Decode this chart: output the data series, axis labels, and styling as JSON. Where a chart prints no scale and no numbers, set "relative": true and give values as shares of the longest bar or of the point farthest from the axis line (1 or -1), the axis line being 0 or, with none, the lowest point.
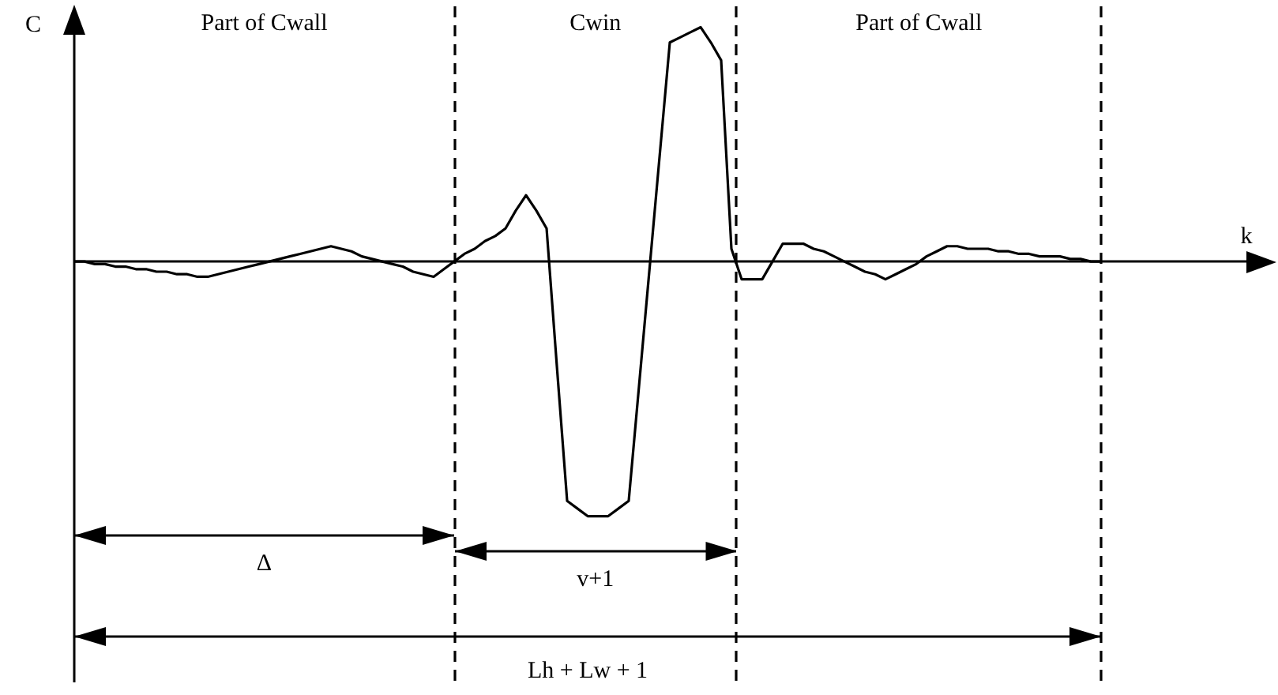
{
  "chart_data": {
    "type": "line",
    "relative": true,
    "ylabel": "C",
    "color": "#000000",
    "tick_labels": false,
    "categories": [
      null,
      null,
      null,
      null,
      null,
      null,
      null,
      null,
      null,
      null,
      null,
      null,
      null,
      null,
      null,
      null,
      null,
      null,
      null,
      null,
      null,
      null,
      null,
      null,
      null,
      null,
      null,
      null,
      null,
      null,
      null,
      null,
      null,
      null,
      null,
      null,
      null,
      null,
      null,
      null,
      null,
      null,
      null,
      null,
      null,
      null,
      null,
      null,
      null,
      null,
      null,
      null,
      null,
      null,
      null,
      null,
      null,
      null,
      null,
      null,
      null,
      null,
      null,
      null,
      null,
      null,
      null,
      null,
      null,
      null,
      null,
      null,
      null,
      null,
      null,
      null,
      null,
      null,
      null,
      null,
      null,
      null,
      null,
      null,
      null,
      null,
      null,
      null,
      null,
      null,
      null,
      null,
      null,
      null,
      null,
      null,
      null,
      null,
      null,
      null,
      null
    ],
    "values": [
      0,
      0,
      -0.01,
      -0.01,
      -0.02,
      -0.02,
      -0.03,
      -0.03,
      -0.04,
      -0.04,
      -0.05,
      -0.05,
      -0.06,
      -0.06,
      -0.05,
      -0.04,
      -0.03,
      -0.02,
      -0.01,
      0,
      0.01,
      0.02,
      0.03,
      0.04,
      0.05,
      0.06,
      0.05,
      0.04,
      0.02,
      0.01,
      0,
      -0.01,
      -0.02,
      -0.04,
      -0.05,
      -0.06,
      -0.03,
      0,
      0.03,
      0.05,
      0.08,
      0.1,
      0.13,
      0.2,
      0.26,
      0.2,
      0.13,
      -0.41,
      -0.94,
      -0.97,
      -1,
      -1,
      -1,
      -0.97,
      -0.94,
      -0.49,
      -0.04,
      0.41,
      0.86,
      0.88,
      0.9,
      0.92,
      0.86,
      0.79,
      0.05,
      -0.07,
      -0.07,
      -0.07,
      0,
      0.07,
      0.07,
      0.07,
      0.05,
      0.04,
      0.02,
      0,
      -0.02,
      -0.04,
      -0.05,
      -0.07,
      -0.05,
      -0.03,
      -0.01,
      0.02,
      0.04,
      0.06,
      0.06,
      0.05,
      0.05,
      0.05,
      0.04,
      0.04,
      0.03,
      0.03,
      0.02,
      0.02,
      0.02,
      0.01,
      0.01,
      0,
      0
    ],
    "annotations": [
      "Part of Cwall",
      "Cwin",
      "Part of Cwall",
      "Δ",
      "v+1",
      "Lh + Lw + 1",
      "k"
    ]
  }
}
